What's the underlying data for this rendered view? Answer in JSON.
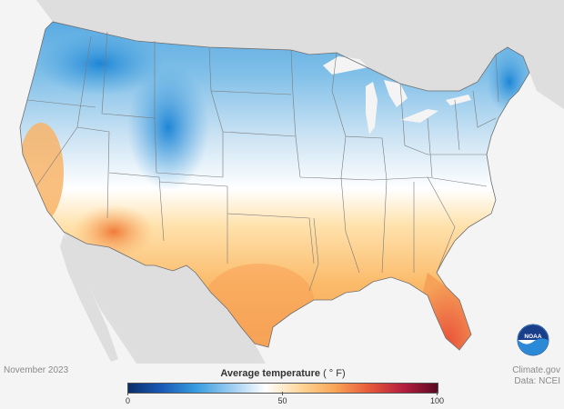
{
  "map": {
    "date_label": "November 2023",
    "credit_line1": "Climate.gov",
    "credit_line2": "Data: NCEI",
    "logo_text": "NOAA"
  },
  "legend": {
    "title": "Average temperature",
    "unit": "(°F)",
    "unit_display": "( ° F)",
    "min": 0,
    "max": 100,
    "ticks": [
      "0",
      "50",
      "100"
    ],
    "colors": [
      "#0b2e6b",
      "#1a5bb8",
      "#3a9ee0",
      "#9ccdf0",
      "#ffffff",
      "#ffd79a",
      "#f8a657",
      "#e75a3a",
      "#b51f3e",
      "#5a0a24"
    ]
  },
  "colors": {
    "background": "#f4f4f4",
    "land_outside": "#dedede",
    "water": "#f4f4f4",
    "border": "#6f6f6f"
  }
}
